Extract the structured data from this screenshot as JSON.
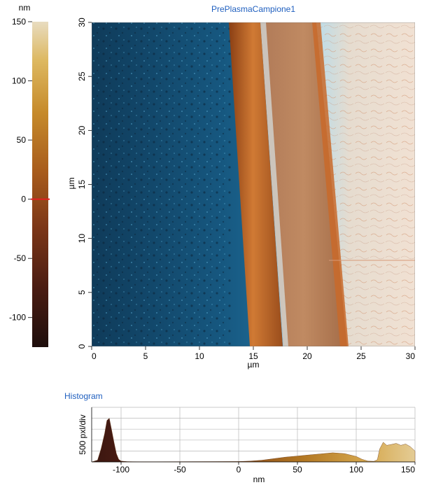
{
  "image_title": "PrePlasmaCampione1",
  "colorbar": {
    "unit": "nm",
    "ticks": [
      "150",
      "100",
      "50",
      "0",
      "-50",
      "-100"
    ],
    "min": -125,
    "max": 150,
    "marker_value": 0
  },
  "scan": {
    "x_label": "µm",
    "y_label": "µm",
    "x_ticks": [
      "0",
      "5",
      "10",
      "15",
      "20",
      "25",
      "30"
    ],
    "y_ticks": [
      "0",
      "5",
      "10",
      "15",
      "20",
      "25",
      "30"
    ],
    "range_um": [
      0,
      30
    ]
  },
  "histogram": {
    "title": "Histogram",
    "y_label": "500 pxl/div",
    "x_label": "nm",
    "x_ticks": [
      "-100",
      "-50",
      "0",
      "50",
      "100",
      "150"
    ]
  },
  "chart_data": {
    "type": "area",
    "title": "Histogram",
    "xlabel": "nm",
    "ylabel": "500 pxl/div",
    "xlim": [
      -125,
      150
    ],
    "ylim": [
      0,
      2500
    ],
    "series": [
      {
        "x": [
          -125,
          -120,
          -117,
          -114,
          -112,
          -110,
          -108,
          -106,
          -104,
          -102,
          -100,
          -95,
          -90,
          -80,
          -60,
          -40,
          -20,
          0,
          10,
          20,
          30,
          40,
          50,
          60,
          70,
          80,
          90,
          100,
          105,
          110,
          115,
          118,
          120,
          123,
          126,
          130,
          134,
          138,
          142,
          146,
          150
        ],
        "values": [
          0,
          80,
          600,
          1300,
          1900,
          2000,
          1450,
          900,
          380,
          120,
          40,
          15,
          10,
          8,
          10,
          12,
          15,
          20,
          40,
          80,
          150,
          220,
          270,
          320,
          370,
          420,
          380,
          250,
          120,
          40,
          30,
          100,
          600,
          900,
          760,
          800,
          850,
          760,
          820,
          700,
          500
        ]
      }
    ]
  }
}
